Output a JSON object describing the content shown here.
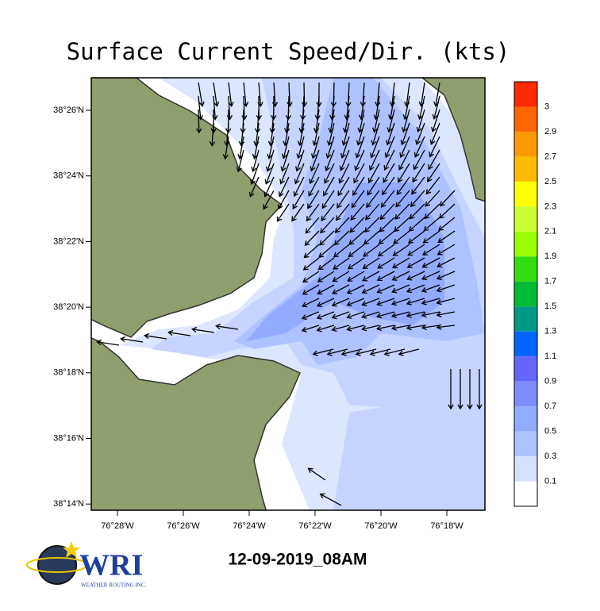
{
  "header": {
    "title": "Surface Current Speed/Dir. (kts)"
  },
  "map": {
    "lat_labels": [
      "38°26'N",
      "38°24'N",
      "38°22'N",
      "38°20'N",
      "38°18'N",
      "38°16'N",
      "38°14'N"
    ],
    "lon_labels": [
      "76°28'W",
      "76°26'W",
      "76°24'W",
      "76°22'W",
      "76°20'W",
      "76°18'W"
    ]
  },
  "colorbar": {
    "levels": [
      3,
      2.9,
      2.7,
      2.5,
      2.3,
      2.1,
      1.9,
      1.7,
      1.5,
      1.3,
      1.1,
      0.9,
      0.7,
      0.5,
      0.3,
      0.1
    ],
    "colors": [
      "#ff2a00",
      "#ff6600",
      "#ff9900",
      "#ffbb00",
      "#ffff00",
      "#ccff33",
      "#99ff00",
      "#33dd11",
      "#00bb33",
      "#009988",
      "#0066ff",
      "#6666ff",
      "#7f8cff",
      "#91abff",
      "#aec2ff",
      "#d6e0ff",
      "#ffffff"
    ]
  },
  "footer": {
    "date": "12-09-2019_08AM"
  },
  "logo": {
    "name": "WRI",
    "subtitle": "WEATHER ROUTING INC."
  }
}
